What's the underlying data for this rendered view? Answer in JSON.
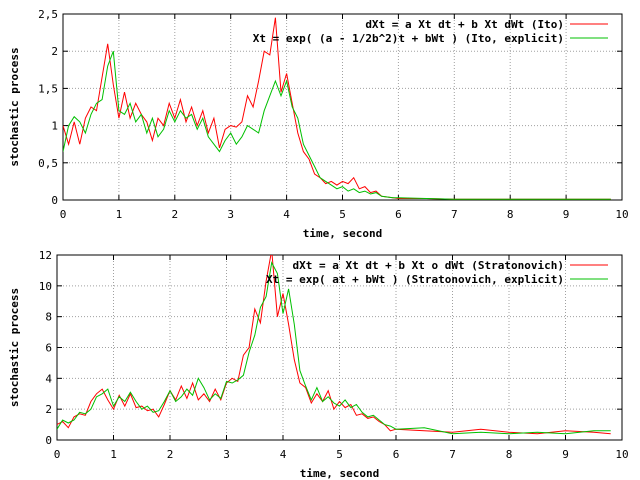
{
  "chart_data": [
    {
      "type": "line",
      "title": "",
      "xlabel": "time, second",
      "ylabel": "stochastic process",
      "xlim": [
        0,
        10
      ],
      "ylim": [
        0,
        2.5
      ],
      "xticks": [
        "0",
        "1",
        "2",
        "3",
        "4",
        "5",
        "6",
        "7",
        "8",
        "9",
        "10"
      ],
      "yticks": [
        "0",
        "0,5",
        "1",
        "1,5",
        "2",
        "2,5"
      ],
      "grid": true,
      "legend_position": "top-right",
      "series": [
        {
          "name": "dXt = a Xt dt + b Xt dWt (Ito)",
          "color": "#ff0000",
          "x": [
            0,
            0.1,
            0.2,
            0.3,
            0.4,
            0.5,
            0.6,
            0.7,
            0.8,
            0.9,
            1.0,
            1.1,
            1.2,
            1.3,
            1.4,
            1.5,
            1.6,
            1.7,
            1.8,
            1.9,
            2.0,
            2.1,
            2.2,
            2.3,
            2.4,
            2.5,
            2.6,
            2.7,
            2.8,
            2.9,
            3.0,
            3.1,
            3.2,
            3.3,
            3.4,
            3.5,
            3.6,
            3.7,
            3.8,
            3.9,
            4.0,
            4.1,
            4.2,
            4.3,
            4.4,
            4.5,
            4.6,
            4.7,
            4.8,
            4.9,
            5.0,
            5.1,
            5.2,
            5.3,
            5.4,
            5.5,
            5.6,
            5.7,
            5.8,
            5.9,
            6.0,
            6.5,
            7.0,
            7.5,
            8.0,
            8.5,
            9.0,
            9.5,
            9.8
          ],
          "y": [
            1.0,
            0.75,
            1.05,
            0.75,
            1.1,
            1.25,
            1.2,
            1.65,
            2.1,
            1.55,
            1.1,
            1.45,
            1.1,
            1.3,
            1.15,
            1.05,
            0.8,
            1.1,
            1.0,
            1.3,
            1.1,
            1.35,
            1.05,
            1.25,
            1.0,
            1.2,
            0.9,
            1.1,
            0.7,
            0.95,
            1.0,
            0.98,
            1.05,
            1.4,
            1.25,
            1.6,
            2.0,
            1.95,
            2.45,
            1.45,
            1.7,
            1.3,
            0.9,
            0.65,
            0.55,
            0.35,
            0.3,
            0.22,
            0.25,
            0.2,
            0.25,
            0.22,
            0.3,
            0.15,
            0.18,
            0.1,
            0.12,
            0.05,
            0.04,
            0.03,
            0.02,
            0.02,
            0.01,
            0.01,
            0.01,
            0.01,
            0.01,
            0.01,
            0.01
          ]
        },
        {
          "name": "Xt = exp( (a - 1/2b^2)t + bWt ) (Ito, explicit)",
          "color": "#00c000",
          "x": [
            0,
            0.1,
            0.2,
            0.3,
            0.4,
            0.5,
            0.6,
            0.7,
            0.8,
            0.9,
            1.0,
            1.1,
            1.2,
            1.3,
            1.4,
            1.5,
            1.6,
            1.7,
            1.8,
            1.9,
            2.0,
            2.1,
            2.2,
            2.3,
            2.4,
            2.5,
            2.6,
            2.7,
            2.8,
            2.9,
            3.0,
            3.1,
            3.2,
            3.3,
            3.4,
            3.5,
            3.6,
            3.7,
            3.8,
            3.9,
            4.0,
            4.1,
            4.2,
            4.3,
            4.4,
            4.5,
            4.6,
            4.7,
            4.8,
            4.9,
            5.0,
            5.1,
            5.2,
            5.3,
            5.4,
            5.5,
            5.6,
            5.7,
            5.8,
            5.9,
            6.0,
            6.5,
            7.0,
            7.5,
            8.0,
            8.5,
            9.0,
            9.5,
            9.8
          ],
          "y": [
            0.65,
            1.0,
            1.12,
            1.05,
            0.9,
            1.15,
            1.3,
            1.35,
            1.8,
            2.0,
            1.2,
            1.15,
            1.3,
            1.05,
            1.15,
            0.9,
            1.1,
            0.85,
            0.95,
            1.2,
            1.05,
            1.2,
            1.1,
            1.15,
            0.95,
            1.1,
            0.85,
            0.75,
            0.65,
            0.8,
            0.9,
            0.75,
            0.85,
            1.0,
            0.95,
            0.9,
            1.2,
            1.4,
            1.6,
            1.4,
            1.6,
            1.25,
            1.1,
            0.75,
            0.6,
            0.45,
            0.3,
            0.25,
            0.2,
            0.15,
            0.18,
            0.12,
            0.15,
            0.1,
            0.12,
            0.08,
            0.1,
            0.05,
            0.04,
            0.03,
            0.03,
            0.02,
            0.01,
            0.01,
            0.01,
            0.01,
            0.01,
            0.01,
            0.01
          ]
        }
      ]
    },
    {
      "type": "line",
      "title": "",
      "xlabel": "time, second",
      "ylabel": "stochastic process",
      "xlim": [
        0,
        10
      ],
      "ylim": [
        0,
        12
      ],
      "xticks": [
        "0",
        "1",
        "2",
        "3",
        "4",
        "5",
        "6",
        "7",
        "8",
        "9",
        "10"
      ],
      "yticks": [
        "0",
        "2",
        "4",
        "6",
        "8",
        "10",
        "12"
      ],
      "grid": true,
      "legend_position": "top-right",
      "series": [
        {
          "name": "dXt = a Xt dt + b Xt o dWt (Stratonovich)",
          "color": "#ff0000",
          "x": [
            0,
            0.1,
            0.2,
            0.3,
            0.4,
            0.5,
            0.6,
            0.7,
            0.8,
            0.9,
            1.0,
            1.1,
            1.2,
            1.3,
            1.4,
            1.5,
            1.6,
            1.7,
            1.8,
            1.9,
            2.0,
            2.1,
            2.2,
            2.3,
            2.4,
            2.5,
            2.6,
            2.7,
            2.8,
            2.9,
            3.0,
            3.1,
            3.2,
            3.3,
            3.4,
            3.5,
            3.6,
            3.7,
            3.8,
            3.9,
            4.0,
            4.1,
            4.2,
            4.3,
            4.4,
            4.5,
            4.6,
            4.7,
            4.8,
            4.9,
            5.0,
            5.1,
            5.2,
            5.3,
            5.4,
            5.5,
            5.6,
            5.7,
            5.8,
            5.9,
            6.0,
            6.5,
            7.0,
            7.5,
            8.0,
            8.5,
            9.0,
            9.5,
            9.8
          ],
          "y": [
            1.0,
            1.2,
            0.8,
            1.5,
            1.7,
            1.6,
            2.5,
            3.0,
            3.3,
            2.6,
            2.0,
            2.9,
            2.2,
            3.0,
            2.1,
            2.2,
            1.9,
            2.0,
            1.5,
            2.3,
            3.2,
            2.6,
            3.5,
            2.7,
            3.7,
            2.6,
            3.0,
            2.5,
            3.3,
            2.6,
            3.7,
            4.0,
            3.8,
            5.5,
            6.0,
            8.5,
            7.6,
            10.3,
            12.3,
            8.0,
            9.5,
            7.5,
            5.2,
            3.7,
            3.4,
            2.4,
            3.0,
            2.5,
            3.2,
            2.0,
            2.5,
            2.1,
            2.3,
            1.6,
            1.7,
            1.4,
            1.5,
            1.2,
            1.0,
            0.6,
            0.7,
            0.6,
            0.5,
            0.7,
            0.5,
            0.4,
            0.6,
            0.5,
            0.4
          ]
        },
        {
          "name": "Xt = exp( at + bWt ) (Stratonovich, explicit)",
          "color": "#00c000",
          "x": [
            0,
            0.1,
            0.2,
            0.3,
            0.4,
            0.5,
            0.6,
            0.7,
            0.8,
            0.9,
            1.0,
            1.1,
            1.2,
            1.3,
            1.4,
            1.5,
            1.6,
            1.7,
            1.8,
            1.9,
            2.0,
            2.1,
            2.2,
            2.3,
            2.4,
            2.5,
            2.6,
            2.7,
            2.8,
            2.9,
            3.0,
            3.1,
            3.2,
            3.3,
            3.4,
            3.5,
            3.6,
            3.7,
            3.8,
            3.9,
            4.0,
            4.1,
            4.2,
            4.3,
            4.4,
            4.5,
            4.6,
            4.7,
            4.8,
            4.9,
            5.0,
            5.1,
            5.2,
            5.3,
            5.4,
            5.5,
            5.6,
            5.7,
            5.8,
            5.9,
            6.0,
            6.5,
            7.0,
            7.5,
            8.0,
            8.5,
            9.0,
            9.5,
            9.8
          ],
          "y": [
            0.7,
            1.3,
            1.1,
            1.3,
            1.8,
            1.7,
            2.0,
            2.8,
            3.0,
            3.3,
            2.2,
            2.8,
            2.5,
            3.1,
            2.5,
            2.0,
            2.2,
            1.8,
            1.9,
            2.5,
            3.2,
            2.5,
            2.8,
            3.3,
            2.9,
            4.0,
            3.4,
            2.6,
            3.0,
            2.7,
            3.8,
            3.7,
            3.9,
            4.2,
            5.7,
            6.8,
            8.6,
            9.3,
            11.5,
            10.8,
            8.2,
            9.8,
            7.5,
            4.5,
            3.5,
            2.6,
            3.4,
            2.5,
            2.8,
            2.4,
            2.2,
            2.6,
            2.1,
            2.3,
            1.8,
            1.5,
            1.6,
            1.3,
            1.0,
            0.9,
            0.7,
            0.8,
            0.4,
            0.5,
            0.4,
            0.5,
            0.4,
            0.6,
            0.6
          ]
        }
      ]
    }
  ]
}
